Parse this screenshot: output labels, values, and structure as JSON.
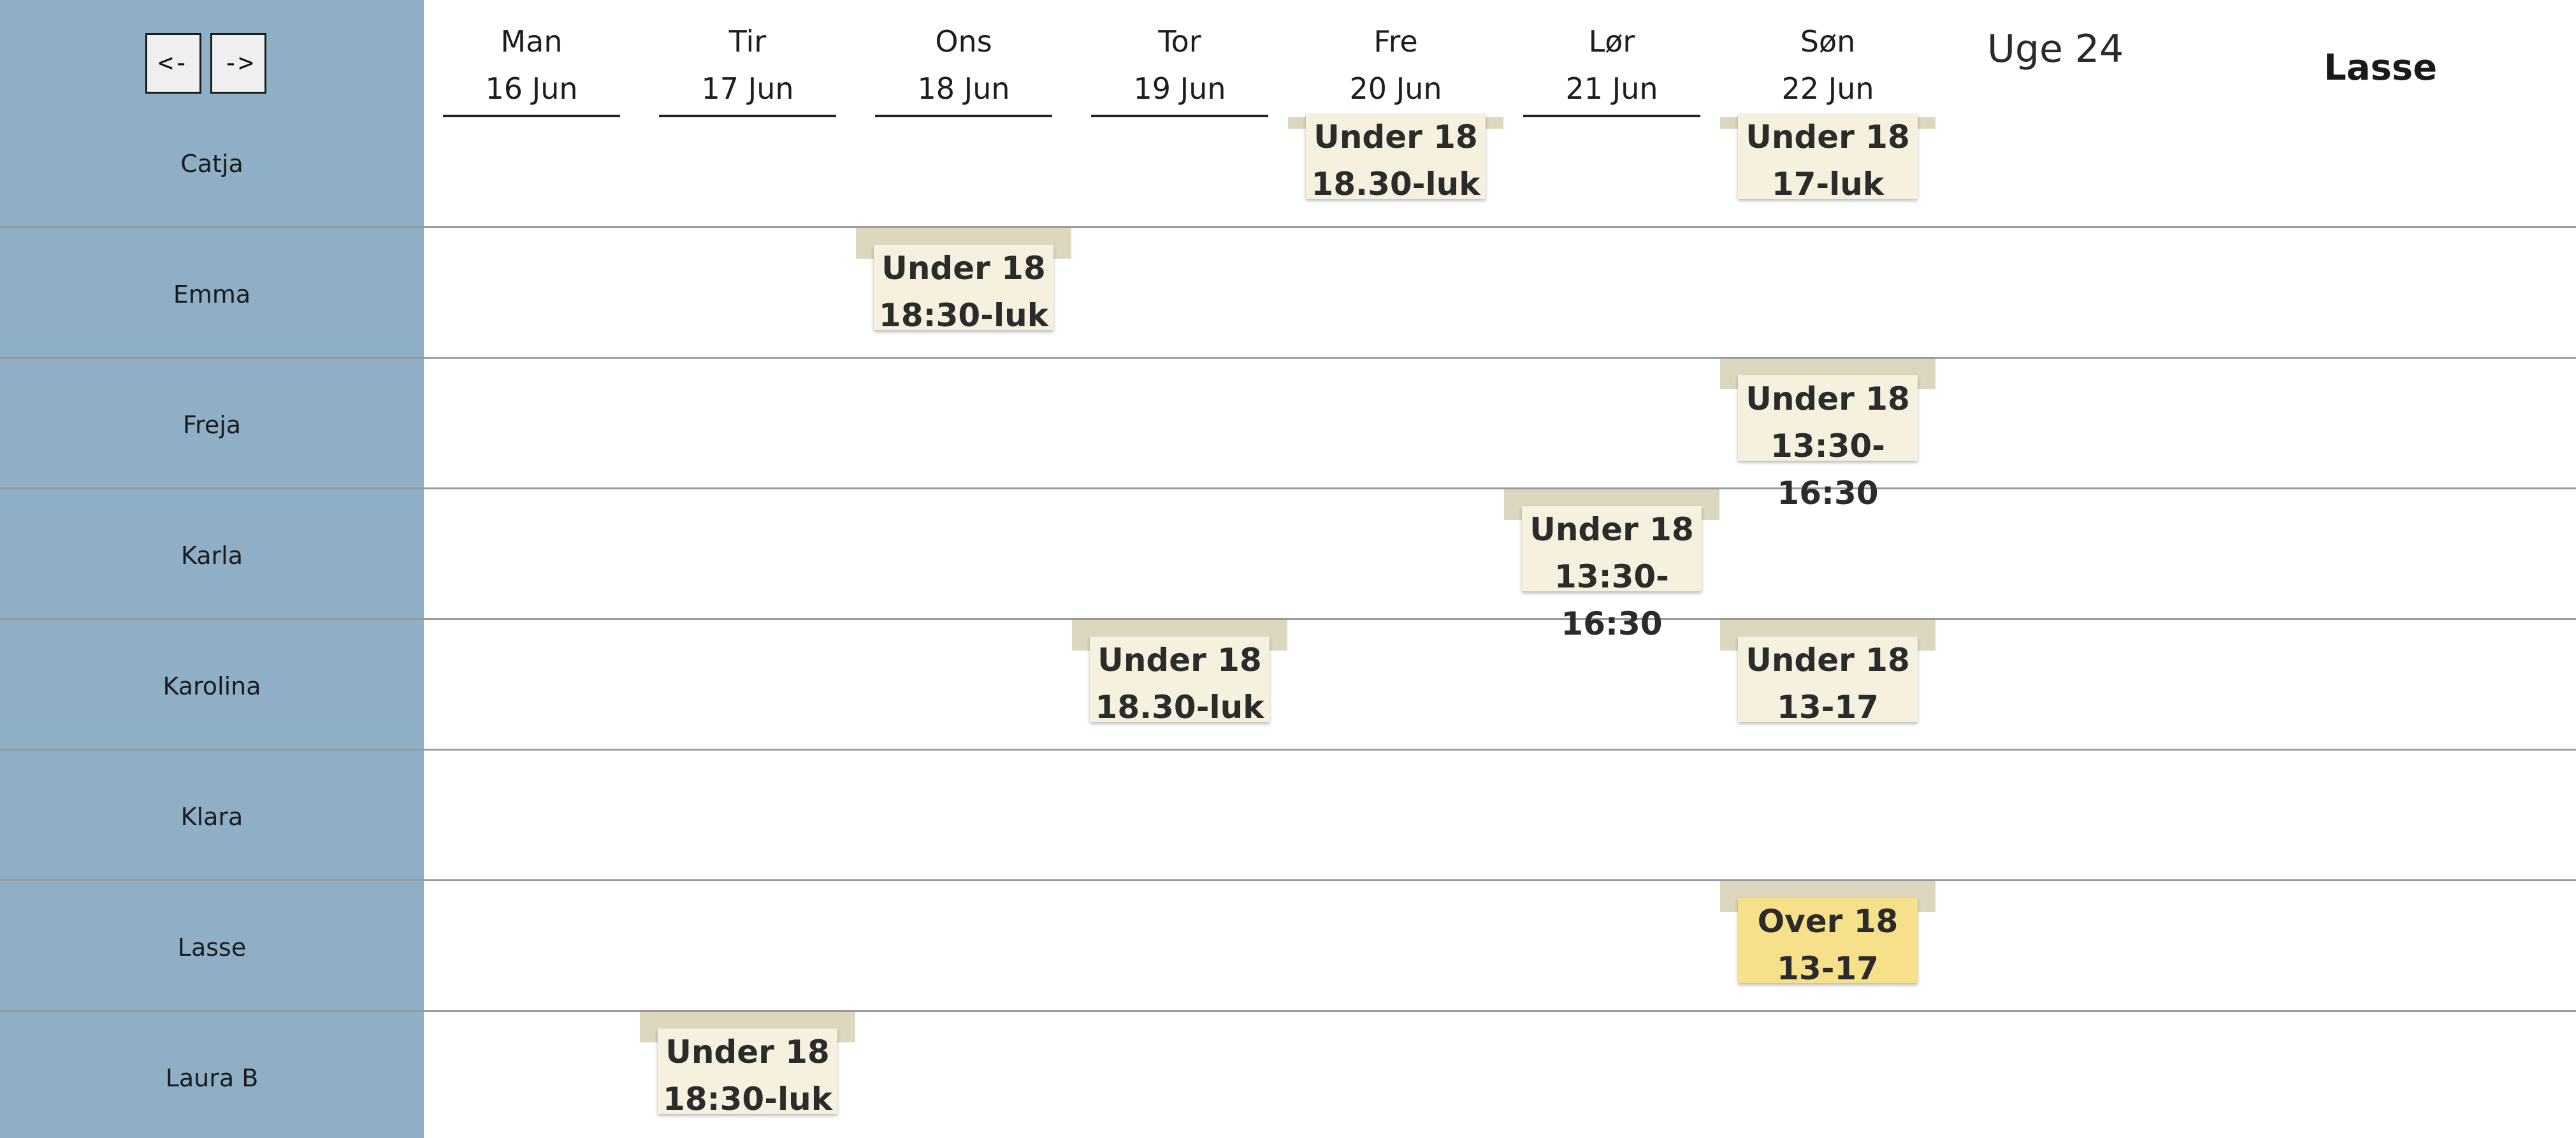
{
  "nav": {
    "prev_label": "<-",
    "next_label": "->"
  },
  "week_label": "Uge 24",
  "user_label": "Lasse",
  "days": [
    {
      "name": "Man",
      "date": "16 Jun"
    },
    {
      "name": "Tir",
      "date": "17 Jun"
    },
    {
      "name": "Ons",
      "date": "18 Jun"
    },
    {
      "name": "Tor",
      "date": "19 Jun"
    },
    {
      "name": "Fre",
      "date": "20 Jun"
    },
    {
      "name": "Lør",
      "date": "21 Jun"
    },
    {
      "name": "Søn",
      "date": "22 Jun"
    }
  ],
  "people": [
    "Catja",
    "Emma",
    "Freja",
    "Karla",
    "Karolina",
    "Klara",
    "Lasse",
    "Laura B"
  ],
  "shifts": [
    {
      "person": "Catja",
      "day": "Fre",
      "line1": "Under 18",
      "line2": "18.30-luk",
      "highlight": false
    },
    {
      "person": "Catja",
      "day": "Søn",
      "line1": "Under 18",
      "line2": "17-luk",
      "highlight": false
    },
    {
      "person": "Emma",
      "day": "Ons",
      "line1": "Under 18",
      "line2": "18:30-luk",
      "highlight": false
    },
    {
      "person": "Freja",
      "day": "Søn",
      "line1": "Under 18",
      "line2": "13:30-16:30",
      "highlight": false
    },
    {
      "person": "Karla",
      "day": "Lør",
      "line1": "Under 18",
      "line2": "13:30-16:30",
      "highlight": false
    },
    {
      "person": "Karolina",
      "day": "Tor",
      "line1": "Under 18",
      "line2": "18.30-luk",
      "highlight": false
    },
    {
      "person": "Karolina",
      "day": "Søn",
      "line1": "Under 18",
      "line2": "13-17",
      "highlight": false
    },
    {
      "person": "Lasse",
      "day": "Søn",
      "line1": "Over 18",
      "line2": "13-17",
      "highlight": true
    },
    {
      "person": "Laura B",
      "day": "Tir",
      "line1": "Under 18",
      "line2": "18:30-luk",
      "highlight": false
    }
  ],
  "colors": {
    "sidebar": "#8fafc7",
    "shift_card": "#f6f1df",
    "shift_card_highlight": "#f7e08a",
    "shift_tab": "#dcd7bf"
  }
}
